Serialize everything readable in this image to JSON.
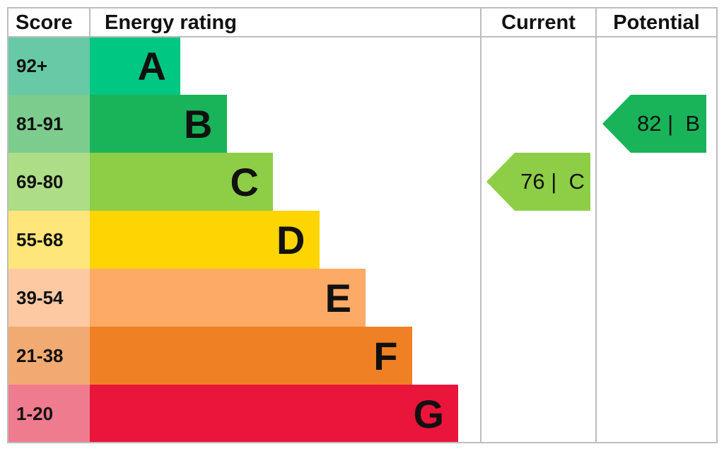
{
  "chart_data": {
    "type": "bar",
    "headers": {
      "score": "Score",
      "rating": "Energy rating",
      "current": "Current",
      "potential": "Potential"
    },
    "bands": [
      {
        "letter": "A",
        "range": "92+",
        "color": "#00c781",
        "score_color": "#68c9a6"
      },
      {
        "letter": "B",
        "range": "81-91",
        "color": "#19b459",
        "score_color": "#7ccc8e"
      },
      {
        "letter": "C",
        "range": "69-80",
        "color": "#8dce46",
        "score_color": "#aedd88"
      },
      {
        "letter": "D",
        "range": "55-68",
        "color": "#ffd500",
        "score_color": "#ffe67a"
      },
      {
        "letter": "E",
        "range": "39-54",
        "color": "#fcaa65",
        "score_color": "#fcc9a3"
      },
      {
        "letter": "F",
        "range": "21-38",
        "color": "#ef8023",
        "score_color": "#f1ab72"
      },
      {
        "letter": "G",
        "range": "1-20",
        "color": "#e9153b",
        "score_color": "#ef7b8f"
      }
    ],
    "current": {
      "value": 76,
      "band": "C",
      "label": "76 |  C",
      "color": "#8dce46"
    },
    "potential": {
      "value": 82,
      "band": "B",
      "label": "82 |  B",
      "color": "#19b459"
    }
  }
}
